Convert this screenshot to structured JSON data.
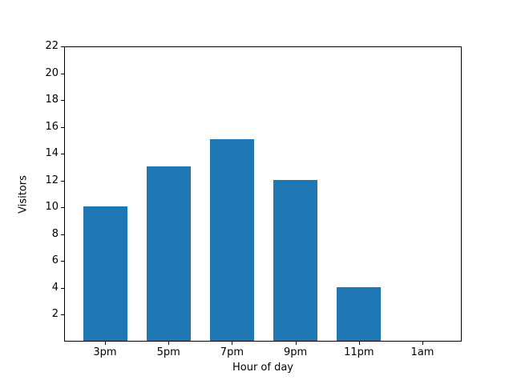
{
  "chart_data": {
    "type": "bar",
    "categories": [
      "3pm",
      "5pm",
      "7pm",
      "9pm",
      "11pm",
      "1am"
    ],
    "values": [
      10,
      13,
      15,
      12,
      4,
      0
    ],
    "xlabel": "Hour of day",
    "ylabel": "Visitors",
    "ylim": [
      0,
      22
    ],
    "yticks": [
      2,
      4,
      6,
      8,
      10,
      12,
      14,
      16,
      18,
      20,
      22
    ],
    "bar_color": "#1f77b4",
    "grid": false,
    "legend": null,
    "title": ""
  }
}
